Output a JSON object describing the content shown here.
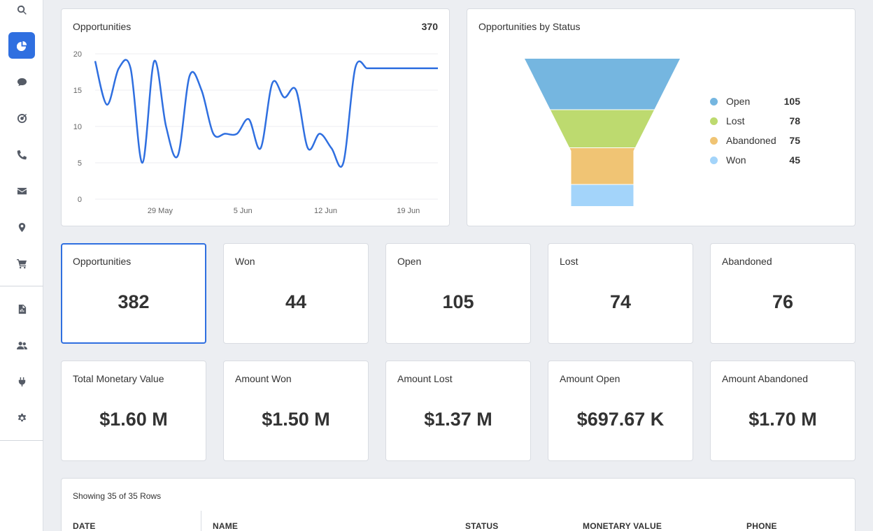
{
  "sidebar": {
    "items": [
      {
        "icon": "search-icon",
        "active": false
      },
      {
        "icon": "pie-chart-icon",
        "active": true
      },
      {
        "icon": "chat-icon",
        "active": false
      },
      {
        "icon": "target-icon",
        "active": false
      },
      {
        "icon": "phone-icon",
        "active": false
      },
      {
        "icon": "mail-icon",
        "active": false
      },
      {
        "icon": "location-pin-icon",
        "active": false
      },
      {
        "icon": "cart-icon",
        "active": false
      },
      {
        "icon": "report-icon",
        "active": false
      },
      {
        "icon": "users-icon",
        "active": false
      },
      {
        "icon": "plug-icon",
        "active": false
      },
      {
        "icon": "gear-icon",
        "active": false
      }
    ],
    "accent": "#2f6fe0"
  },
  "line_card": {
    "title": "Opportunities",
    "total": "370"
  },
  "funnel_card": {
    "title": "Opportunities by Status",
    "legend": [
      {
        "label": "Open",
        "value": "105",
        "color": "#75b6e0"
      },
      {
        "label": "Lost",
        "value": "78",
        "color": "#bdda6f"
      },
      {
        "label": "Abandoned",
        "value": "75",
        "color": "#f0c474"
      },
      {
        "label": "Won",
        "value": "45",
        "color": "#a3d4fa"
      }
    ]
  },
  "stats": [
    {
      "label": "Opportunities",
      "value": "382"
    },
    {
      "label": "Won",
      "value": "44"
    },
    {
      "label": "Open",
      "value": "105"
    },
    {
      "label": "Lost",
      "value": "74"
    },
    {
      "label": "Abandoned",
      "value": "76"
    }
  ],
  "amounts": [
    {
      "label": "Total Monetary Value",
      "value": "$1.60 M"
    },
    {
      "label": "Amount Won",
      "value": "$1.50 M"
    },
    {
      "label": "Amount Lost",
      "value": "$1.37 M"
    },
    {
      "label": "Amount Open",
      "value": "$697.67 K"
    },
    {
      "label": "Amount Abandoned",
      "value": "$1.70 M"
    }
  ],
  "table": {
    "caption": "Showing 35 of 35 Rows",
    "columns": [
      "DATE",
      "NAME",
      "STATUS",
      "MONETARY VALUE",
      "PHONE"
    ]
  },
  "chart_data": [
    {
      "type": "line",
      "title": "Opportunities",
      "xlabel": "",
      "ylabel": "",
      "ylim": [
        0,
        20
      ],
      "yticks": [
        "0",
        "5",
        "10",
        "15",
        "20"
      ],
      "xticks": [
        "29 May",
        "5 Jun",
        "12 Jun",
        "19 Jun"
      ],
      "xtick_positions": [
        5.5,
        12.5,
        19.5,
        26.5
      ],
      "x": [
        0,
        1,
        2,
        3,
        4,
        5,
        6,
        7,
        8,
        9,
        10,
        11,
        12,
        13,
        14,
        15,
        16,
        17,
        18,
        19,
        20,
        21,
        22,
        23,
        23.5,
        24,
        25,
        26,
        27,
        28,
        29
      ],
      "series": [
        {
          "name": "Opportunities",
          "color": "#2f6fe0",
          "values": [
            19,
            13,
            18,
            18,
            5,
            19,
            10,
            6,
            17,
            15,
            9,
            9,
            9,
            11,
            7,
            16,
            14,
            15,
            7,
            9,
            7,
            5,
            18,
            18,
            18,
            18,
            18,
            18,
            18,
            18,
            18
          ]
        }
      ]
    },
    {
      "type": "funnel",
      "title": "Opportunities by Status",
      "categories": [
        "Open",
        "Lost",
        "Abandoned",
        "Won"
      ],
      "values": [
        105,
        78,
        75,
        45
      ],
      "colors": [
        "#75b6e0",
        "#bdda6f",
        "#f0c474",
        "#a3d4fa"
      ]
    }
  ]
}
